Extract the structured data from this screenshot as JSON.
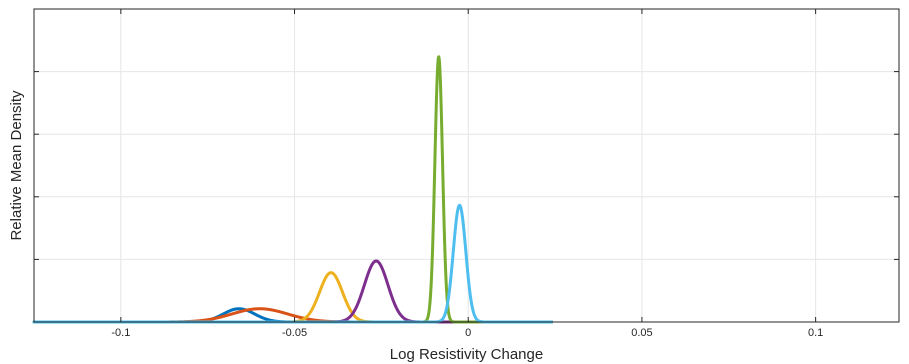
{
  "chart_data": {
    "type": "line",
    "title": "",
    "xlabel": "Log Resistivity Change",
    "ylabel": "Relative Mean Density",
    "xlim": [
      -0.125,
      0.124
    ],
    "ylim": [
      0,
      1.18
    ],
    "grid": true,
    "legend": "none",
    "x_ticks": [
      {
        "value": -0.1,
        "label": "-0.1"
      },
      {
        "value": -0.05,
        "label": "-0.05"
      },
      {
        "value": 0,
        "label": "0"
      },
      {
        "value": 0.05,
        "label": "0.05"
      },
      {
        "value": 0.1,
        "label": "0.1"
      }
    ],
    "y_ticks": [
      0.236,
      0.472,
      0.708,
      0.944
    ],
    "x_range": [
      -0.125,
      0.024
    ],
    "series": [
      {
        "color": "#0072BD",
        "components": [
          {
            "mean": -0.066,
            "sd": 0.0045,
            "amp": 0.05
          }
        ]
      },
      {
        "color": "#D95319",
        "components": [
          {
            "mean": -0.06,
            "sd": 0.008,
            "amp": 0.05
          }
        ]
      },
      {
        "color": "#EDB120",
        "components": [
          {
            "mean": -0.0395,
            "sd": 0.0033,
            "amp": 0.186
          }
        ]
      },
      {
        "color": "#7E2F8E",
        "components": [
          {
            "mean": -0.0265,
            "sd": 0.0034,
            "amp": 0.23
          }
        ]
      },
      {
        "color": "#77AC30",
        "components": [
          {
            "mean": -0.0085,
            "sd": 0.0011,
            "amp": 1.0
          }
        ]
      },
      {
        "color": "#4DBEEE",
        "components": [
          {
            "mean": -0.0025,
            "sd": 0.0018,
            "amp": 0.44
          }
        ]
      }
    ]
  }
}
